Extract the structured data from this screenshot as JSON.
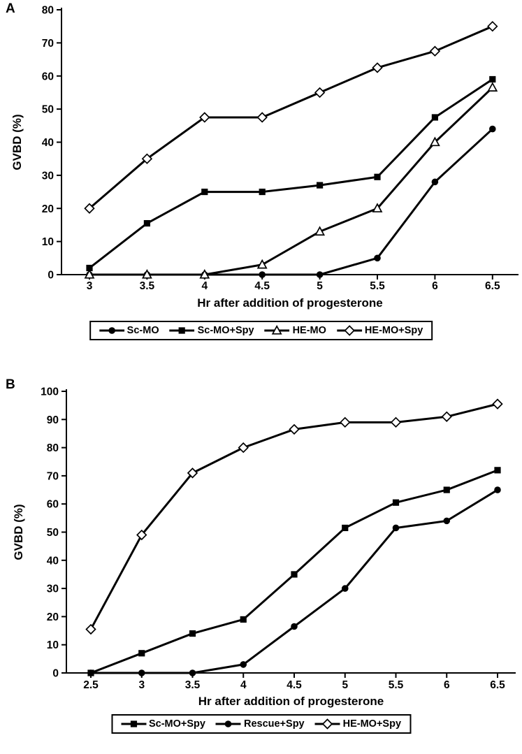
{
  "chart_data": [
    {
      "panel": "A",
      "type": "line",
      "title": "",
      "xlabel": "Hr after addition of progesterone",
      "ylabel": "GVBD (%)",
      "x": [
        3,
        3.5,
        4,
        4.5,
        5,
        5.5,
        6,
        6.5
      ],
      "xtick_labels": [
        "3",
        "3.5",
        "4",
        "4.5",
        "5",
        "5.5",
        "6",
        "6.5"
      ],
      "ylim": [
        0,
        80
      ],
      "ytick_step": 10,
      "grid": false,
      "legend_position": "bottom",
      "line_color": "#000000",
      "series": [
        {
          "name": "Sc-MO",
          "marker": "filled-circle",
          "values": [
            0,
            0,
            0,
            0,
            0,
            5,
            28,
            44
          ]
        },
        {
          "name": "Sc-MO+Spy",
          "marker": "filled-square",
          "values": [
            2,
            15.5,
            25,
            25,
            27,
            29.5,
            47.5,
            59
          ]
        },
        {
          "name": "HE-MO",
          "marker": "open-triangle",
          "values": [
            0,
            0,
            0,
            3,
            13,
            20,
            40,
            56.5
          ]
        },
        {
          "name": "HE-MO+Spy",
          "marker": "open-diamond",
          "values": [
            20,
            35,
            47.5,
            47.5,
            55,
            62.5,
            67.5,
            75
          ]
        }
      ]
    },
    {
      "panel": "B",
      "type": "line",
      "title": "",
      "xlabel": "Hr after addition of progesterone",
      "ylabel": "GVBD (%)",
      "x": [
        2.5,
        3,
        3.5,
        4,
        4.5,
        5,
        5.5,
        6,
        6.5
      ],
      "xtick_labels": [
        "2.5",
        "3",
        "3.5",
        "4",
        "4.5",
        "5",
        "5.5",
        "6",
        "6.5"
      ],
      "ylim": [
        0,
        100
      ],
      "ytick_step": 10,
      "grid": false,
      "legend_position": "bottom",
      "line_color": "#000000",
      "series": [
        {
          "name": "Sc-MO+Spy",
          "marker": "filled-square",
          "values": [
            0,
            7,
            14,
            19,
            35,
            51.5,
            60.5,
            65,
            72
          ]
        },
        {
          "name": "Rescue+Spy",
          "marker": "filled-circle",
          "values": [
            0,
            0,
            0,
            3,
            16.5,
            30,
            51.5,
            54,
            65
          ]
        },
        {
          "name": "HE-MO+Spy",
          "marker": "open-diamond",
          "values": [
            15.5,
            49,
            71,
            80,
            86.5,
            89,
            89,
            91,
            95.5
          ]
        }
      ]
    }
  ]
}
